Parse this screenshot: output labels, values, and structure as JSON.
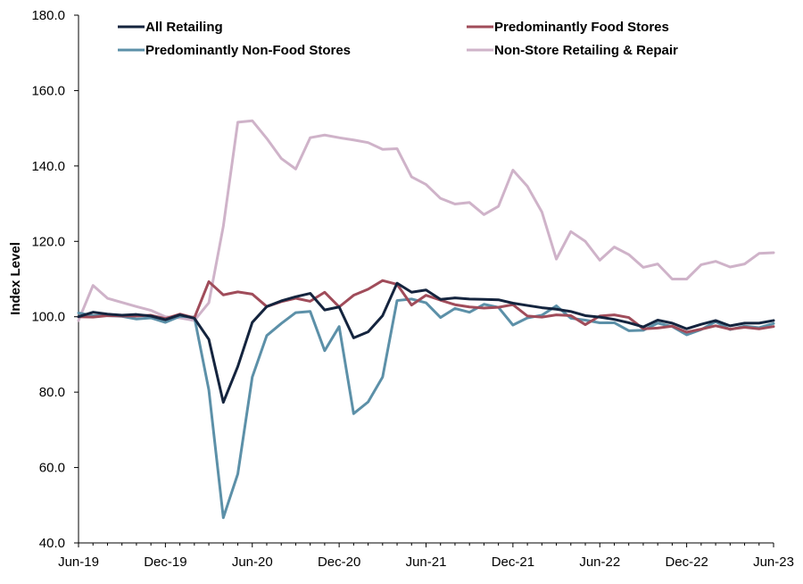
{
  "chart_data": {
    "type": "line",
    "title": "",
    "xlabel": "",
    "ylabel": "Index Level",
    "ylim": [
      40,
      180
    ],
    "yticks": [
      "40.0",
      "60.0",
      "80.0",
      "100.0",
      "120.0",
      "140.0",
      "160.0",
      "180.0"
    ],
    "x_tick_labels": [
      "Jun-19",
      "Dec-19",
      "Jun-20",
      "Dec-20",
      "Jun-21",
      "Dec-21",
      "Jun-22",
      "Dec-22",
      "Jun-23"
    ],
    "x": [
      "Jun-19",
      "Jul-19",
      "Aug-19",
      "Sep-19",
      "Oct-19",
      "Nov-19",
      "Dec-19",
      "Jan-20",
      "Feb-20",
      "Mar-20",
      "Apr-20",
      "May-20",
      "Jun-20",
      "Jul-20",
      "Aug-20",
      "Sep-20",
      "Oct-20",
      "Nov-20",
      "Dec-20",
      "Jan-21",
      "Feb-21",
      "Mar-21",
      "Apr-21",
      "May-21",
      "Jun-21",
      "Jul-21",
      "Aug-21",
      "Sep-21",
      "Oct-21",
      "Nov-21",
      "Dec-21",
      "Jan-22",
      "Feb-22",
      "Mar-22",
      "Apr-22",
      "May-22",
      "Jun-22",
      "Jul-22",
      "Aug-22",
      "Sep-22",
      "Oct-22",
      "Nov-22",
      "Dec-22",
      "Jan-23",
      "Feb-23",
      "Mar-23",
      "Apr-23",
      "May-23",
      "Jun-23"
    ],
    "grid": false,
    "legend_position": "top",
    "series": [
      {
        "name": "All Retailing",
        "color": "#14243e",
        "values": [
          100.0,
          101.2,
          100.7,
          100.4,
          100.6,
          100.2,
          99.2,
          100.5,
          99.6,
          94.0,
          77.3,
          86.8,
          98.5,
          102.7,
          104.2,
          105.3,
          106.2,
          101.8,
          102.6,
          94.4,
          96.0,
          100.3,
          108.9,
          106.5,
          107.1,
          104.6,
          105.0,
          104.7,
          104.6,
          104.5,
          103.6,
          103.0,
          102.4,
          102.0,
          101.4,
          100.3,
          99.9,
          99.3,
          98.4,
          97.3,
          99.1,
          98.3,
          96.8,
          98.0,
          99.0,
          97.6,
          98.3,
          98.3,
          99.0
        ]
      },
      {
        "name": "Predominantly Food Stores",
        "color": "#a04c5a",
        "values": [
          100.0,
          99.9,
          100.3,
          100.2,
          100.2,
          100.4,
          99.5,
          100.7,
          99.7,
          109.3,
          105.8,
          106.6,
          106.0,
          102.7,
          104.0,
          104.9,
          104.1,
          106.5,
          102.6,
          105.7,
          107.3,
          109.6,
          108.6,
          103.1,
          105.7,
          104.4,
          103.2,
          102.6,
          102.3,
          102.5,
          103.2,
          100.2,
          99.9,
          100.5,
          100.3,
          97.9,
          100.2,
          100.5,
          99.8,
          96.8,
          97.0,
          97.5,
          95.9,
          96.7,
          97.6,
          96.7,
          97.2,
          96.8,
          97.4
        ]
      },
      {
        "name": "Predominantly Non-Food Stores",
        "color": "#5c90a8",
        "values": [
          101.0,
          100.3,
          100.3,
          100.1,
          99.4,
          99.7,
          98.5,
          100.1,
          99.9,
          80.6,
          46.7,
          58.3,
          84.0,
          95.0,
          98.2,
          101.1,
          101.4,
          91.0,
          97.4,
          74.3,
          77.4,
          84.0,
          104.3,
          104.7,
          103.7,
          99.8,
          102.2,
          101.2,
          103.3,
          102.5,
          97.8,
          99.7,
          100.4,
          102.9,
          99.6,
          99.1,
          98.4,
          98.4,
          96.3,
          96.4,
          98.3,
          97.4,
          95.2,
          96.6,
          98.7,
          96.6,
          97.5,
          97.1,
          98.2
        ]
      },
      {
        "name": "Non-Store Retailing & Repair",
        "color": "#cfb3c9",
        "values": [
          99.0,
          108.3,
          104.9,
          103.8,
          102.7,
          101.7,
          100.0,
          99.7,
          99.0,
          103.7,
          124.0,
          151.6,
          152.0,
          147.3,
          142.0,
          139.2,
          147.5,
          148.2,
          147.5,
          146.9,
          146.2,
          144.4,
          144.6,
          137.1,
          135.1,
          131.4,
          129.9,
          130.3,
          127.1,
          129.3,
          138.9,
          134.6,
          127.8,
          115.3,
          122.6,
          120.0,
          115.0,
          118.5,
          116.5,
          113.1,
          114.0,
          110.0,
          110.0,
          113.8,
          114.7,
          113.2,
          114.0,
          116.8,
          117.0
        ]
      }
    ]
  }
}
